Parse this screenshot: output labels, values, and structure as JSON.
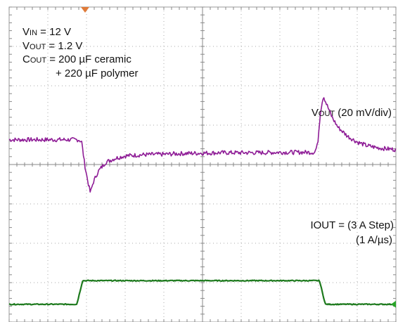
{
  "chart_data": {
    "type": "line",
    "grid": true,
    "annotations": {
      "conditions": {
        "vin": {
          "main": "V",
          "sub": "IN",
          "rest": " = 12 V"
        },
        "vout": {
          "main": "V",
          "sub": "OUT",
          "rest": " = 1.2 V"
        },
        "cout": {
          "main": "C",
          "sub": "OUT",
          "rest": " = 200 µF ceramic"
        },
        "cout_line2": "+ 220 µF polymer"
      },
      "vout_trace": {
        "main": "V",
        "sub": "OUT",
        "rest": " (20 mV/div)"
      },
      "iout_trace": {
        "line1": "IOUT = (3 A Step)",
        "line2": "(1 A/µs)"
      }
    },
    "divisions": {
      "x": 10,
      "y": 8
    },
    "series": [
      {
        "color": "#8e1c96",
        "points": [
          [
            0,
            0.63
          ],
          [
            3.6,
            0.63
          ],
          [
            3.75,
            0.58
          ],
          [
            3.9,
            0.02
          ],
          [
            4.05,
            -0.38
          ],
          [
            4.2,
            -0.72
          ],
          [
            4.35,
            -0.45
          ],
          [
            4.6,
            -0.18
          ],
          [
            5.0,
            0.06
          ],
          [
            5.5,
            0.16
          ],
          [
            6.0,
            0.22
          ],
          [
            7.0,
            0.25
          ],
          [
            8.0,
            0.26
          ],
          [
            9.0,
            0.28
          ],
          [
            10.0,
            0.29
          ],
          [
            11.0,
            0.3
          ],
          [
            12.0,
            0.3
          ],
          [
            13.0,
            0.3
          ],
          [
            14.0,
            0.31
          ],
          [
            15.8,
            0.31
          ],
          [
            15.95,
            0.5
          ],
          [
            16.1,
            1.35
          ],
          [
            16.25,
            1.75
          ],
          [
            16.4,
            1.55
          ],
          [
            16.7,
            1.2
          ],
          [
            17.0,
            0.95
          ],
          [
            17.5,
            0.72
          ],
          [
            18.0,
            0.57
          ],
          [
            18.5,
            0.48
          ],
          [
            19.0,
            0.43
          ],
          [
            19.5,
            0.4
          ],
          [
            20.0,
            0.38
          ]
        ],
        "noise": 0.055
      },
      {
        "color": "#1e7a1e",
        "points": [
          [
            0,
            -3.55
          ],
          [
            3.5,
            -3.55
          ],
          [
            3.8,
            -2.95
          ],
          [
            16.05,
            -2.95
          ],
          [
            16.35,
            -3.55
          ],
          [
            20.0,
            -3.55
          ]
        ],
        "noise": 0.012
      }
    ],
    "marker_colors": {
      "trigger": "#e07b39",
      "ground": "#2aa52a"
    }
  }
}
